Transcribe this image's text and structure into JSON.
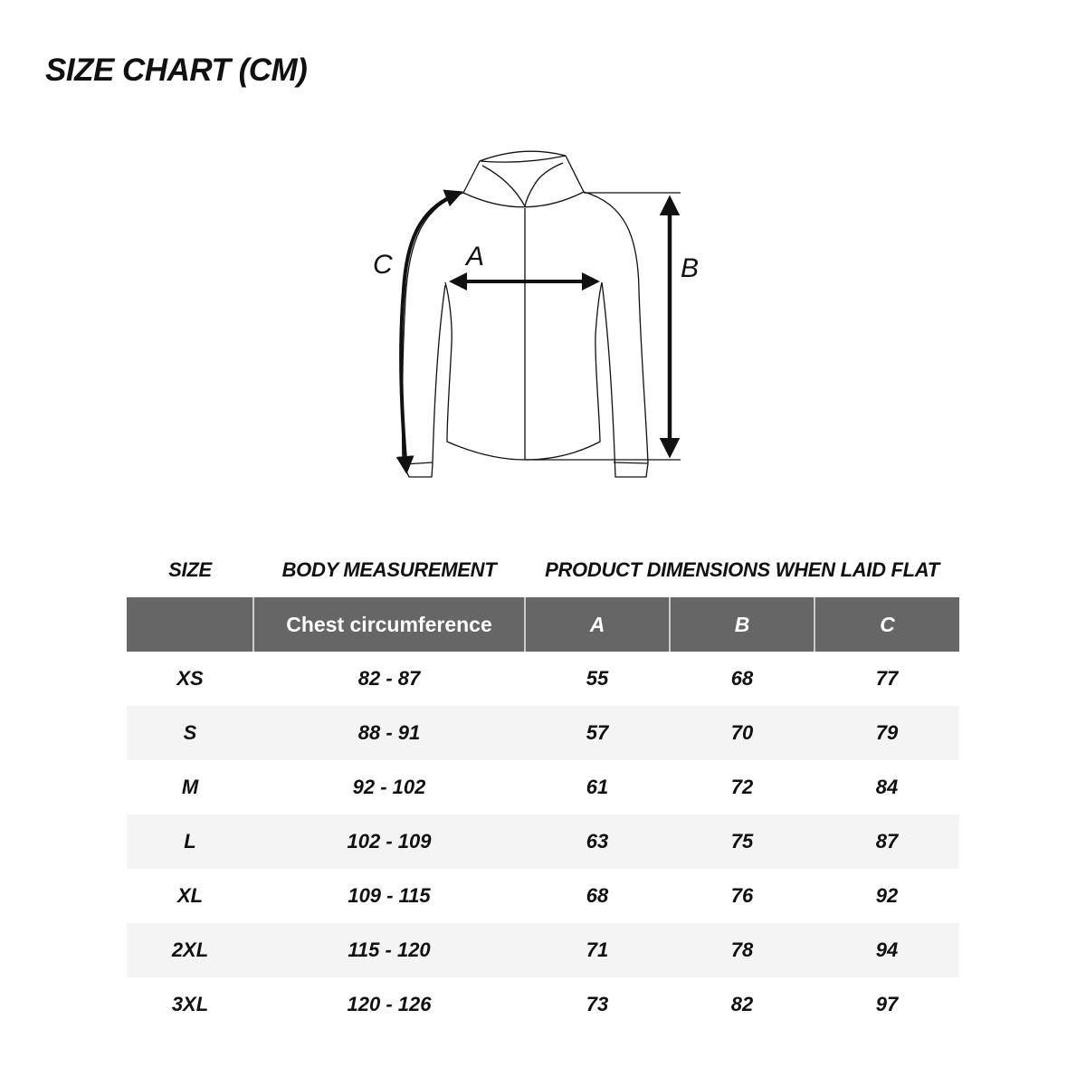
{
  "title": "SIZE CHART (CM)",
  "diagram": {
    "labels": {
      "a": "A",
      "b": "B",
      "c": "C"
    }
  },
  "table": {
    "group_headers": {
      "size": "SIZE",
      "body": "BODY MEASUREMENT",
      "product": "PRODUCT DIMENSIONS WHEN LAID FLAT"
    },
    "columns": {
      "size": "",
      "chest": "Chest circumference",
      "a": "A",
      "b": "B",
      "c": "C"
    },
    "header_color": "#666666",
    "rows": [
      {
        "size": "XS",
        "chest": "82 - 87",
        "a": "55",
        "b": "68",
        "c": "77"
      },
      {
        "size": "S",
        "chest": "88 - 91",
        "a": "57",
        "b": "70",
        "c": "79"
      },
      {
        "size": "M",
        "chest": "92 - 102",
        "a": "61",
        "b": "72",
        "c": "84"
      },
      {
        "size": "L",
        "chest": "102 - 109",
        "a": "63",
        "b": "75",
        "c": "87"
      },
      {
        "size": "XL",
        "chest": "109 - 115",
        "a": "68",
        "b": "76",
        "c": "92"
      },
      {
        "size": "2XL",
        "chest": "115 - 120",
        "a": "71",
        "b": "78",
        "c": "94"
      },
      {
        "size": "3XL",
        "chest": "120 - 126",
        "a": "73",
        "b": "82",
        "c": "97"
      }
    ]
  }
}
